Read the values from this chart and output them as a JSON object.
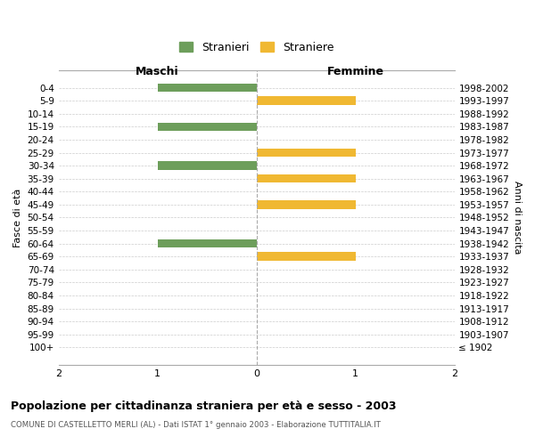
{
  "age_groups": [
    "0-4",
    "5-9",
    "10-14",
    "15-19",
    "20-24",
    "25-29",
    "30-34",
    "35-39",
    "40-44",
    "45-49",
    "50-54",
    "55-59",
    "60-64",
    "65-69",
    "70-74",
    "75-79",
    "80-84",
    "85-89",
    "90-94",
    "95-99",
    "100+"
  ],
  "birth_years": [
    "1998-2002",
    "1993-1997",
    "1988-1992",
    "1983-1987",
    "1978-1982",
    "1973-1977",
    "1968-1972",
    "1963-1967",
    "1958-1962",
    "1953-1957",
    "1948-1952",
    "1943-1947",
    "1938-1942",
    "1933-1937",
    "1928-1932",
    "1923-1927",
    "1918-1922",
    "1913-1917",
    "1908-1912",
    "1903-1907",
    "≤ 1902"
  ],
  "maschi": [
    1,
    0,
    0,
    1,
    0,
    0,
    1,
    0,
    0,
    0,
    0,
    0,
    1,
    0,
    0,
    0,
    0,
    0,
    0,
    0,
    0
  ],
  "femmine": [
    0,
    1,
    0,
    0,
    0,
    1,
    0,
    1,
    0,
    1,
    0,
    0,
    0,
    1,
    0,
    0,
    0,
    0,
    0,
    0,
    0
  ],
  "maschi_color": "#6d9e5b",
  "femmine_color": "#f0b832",
  "background_color": "#ffffff",
  "grid_color": "#cccccc",
  "title": "Popolazione per cittadinanza straniera per età e sesso - 2003",
  "subtitle": "COMUNE DI CASTELLETTO MERLI (AL) - Dati ISTAT 1° gennaio 2003 - Elaborazione TUTTITALIA.IT",
  "xlabel_left": "Maschi",
  "xlabel_right": "Femmine",
  "ylabel_left": "Fasce di età",
  "ylabel_right": "Anni di nascita",
  "legend_stranieri": "Stranieri",
  "legend_straniere": "Straniere",
  "xlim": 2
}
